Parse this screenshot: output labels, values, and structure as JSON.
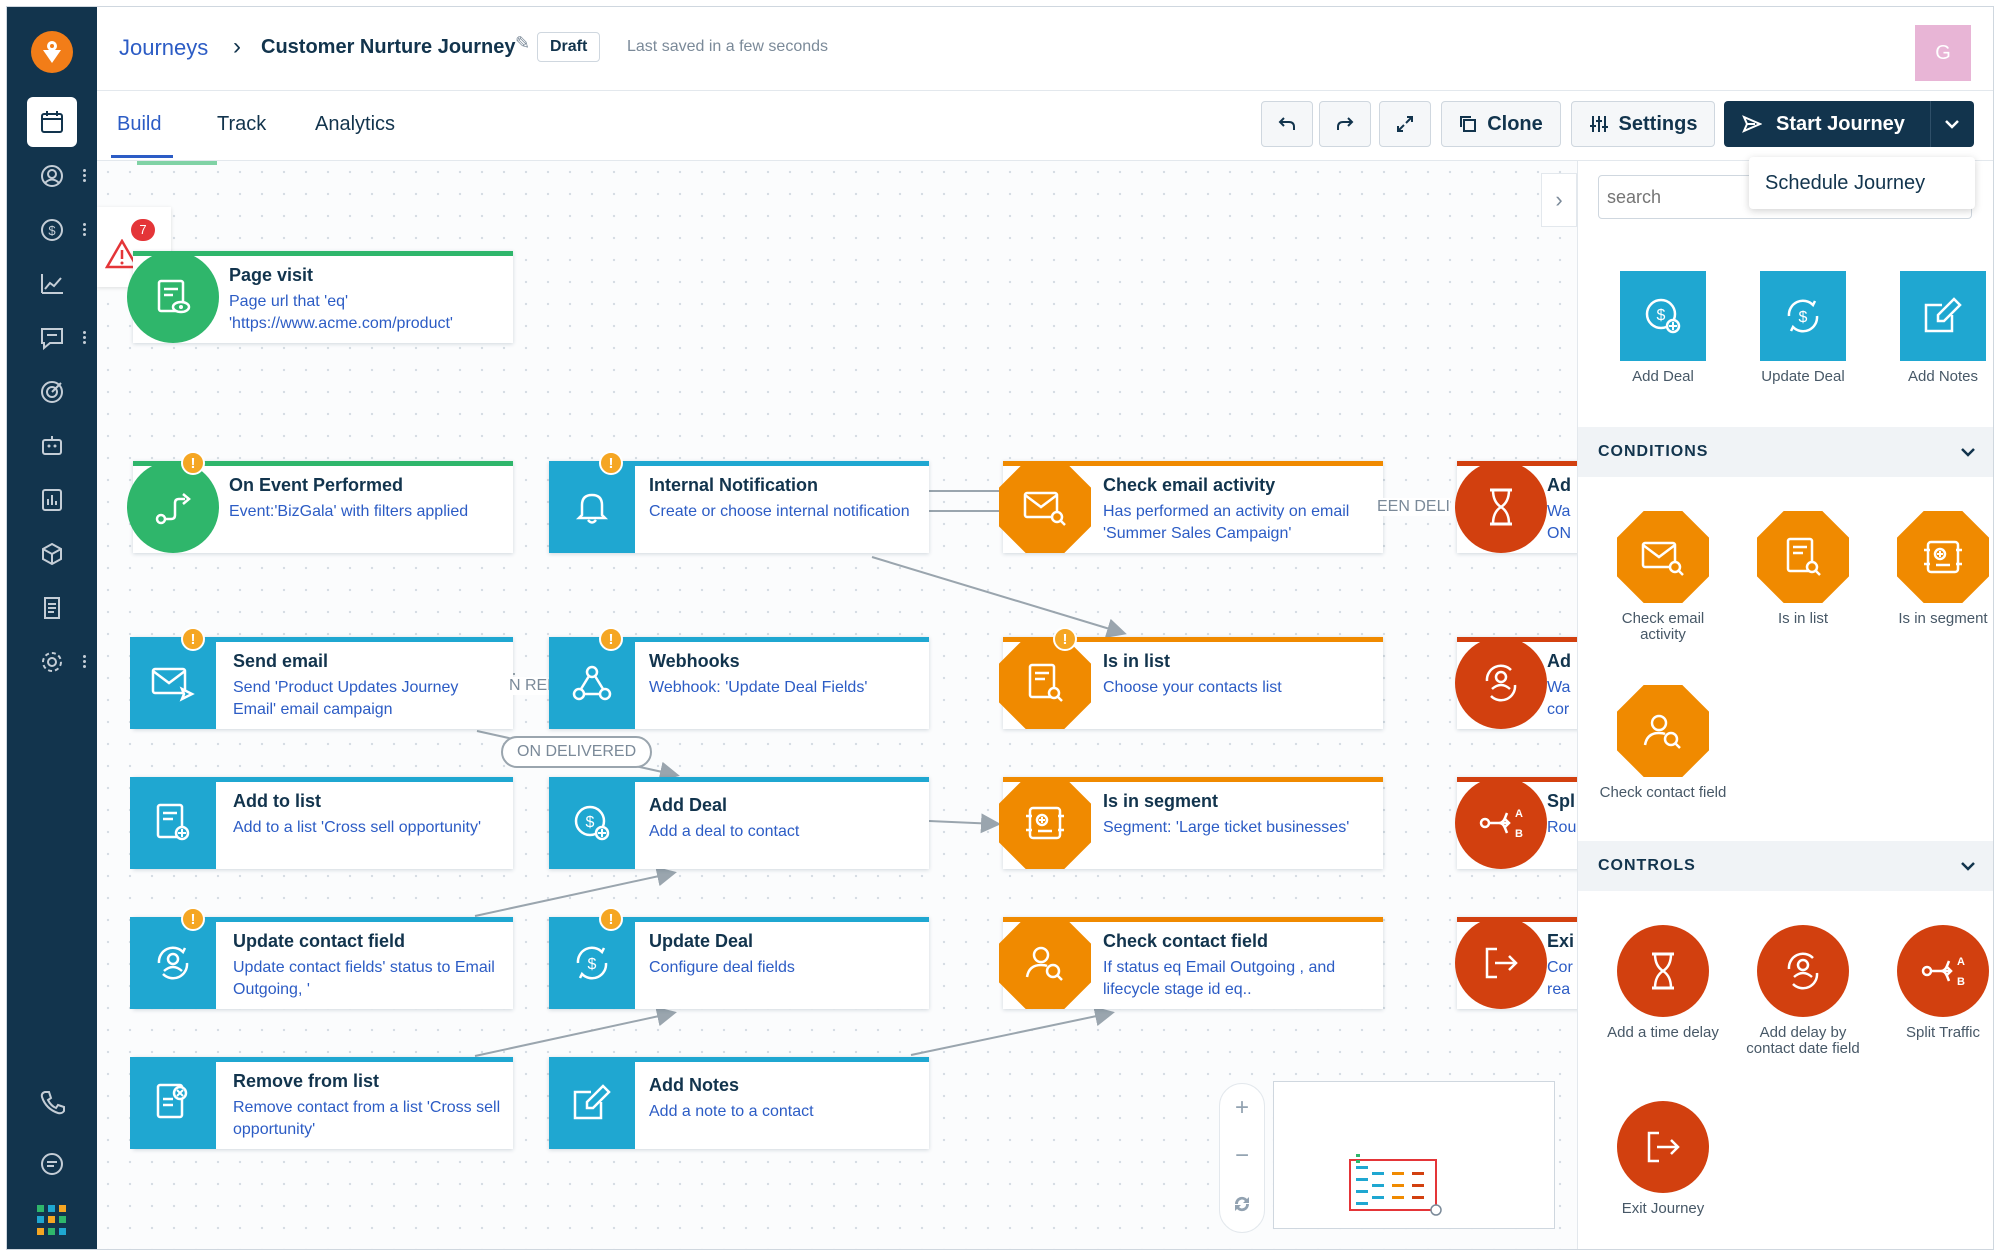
{
  "header": {
    "breadcrumb": "Journeys",
    "title": "Customer Nurture Journey",
    "status_badge": "Draft",
    "saved_text": "Last saved in a few seconds",
    "avatar_initial": "G"
  },
  "tabs": [
    "Build",
    "Track",
    "Analytics"
  ],
  "toolbar": {
    "clone_label": "Clone",
    "settings_label": "Settings",
    "start_label": "Start Journey",
    "schedule_label": "Schedule Journey"
  },
  "alerts": {
    "count": "7"
  },
  "nodes": [
    {
      "title": "Page visit",
      "sub": "Page url that 'eq' 'https://www.acme.com/product'"
    },
    {
      "title": "On Event Performed",
      "sub": "Event:'BizGala' with filters applied"
    },
    {
      "title": "Internal Notification",
      "sub": "Create or choose internal notification"
    },
    {
      "title": "Check email activity",
      "sub": "Has performed an activity on email 'Summer Sales Campaign'"
    },
    {
      "title": "Send email",
      "sub": "Send 'Product Updates Journey Email' email campaign"
    },
    {
      "title": "Webhooks",
      "sub": "Webhook: 'Update Deal Fields'"
    },
    {
      "title": "Is in list",
      "sub": "Choose your contacts list"
    },
    {
      "title": "Add to list",
      "sub": "Add to a list 'Cross sell opportunity'"
    },
    {
      "title": "Add Deal",
      "sub": "Add a deal to contact"
    },
    {
      "title": "Is in segment",
      "sub": "Segment: 'Large ticket businesses'"
    },
    {
      "title": "Update contact field",
      "sub": "Update contact fields' status to Email Outgoing, '"
    },
    {
      "title": "Update Deal",
      "sub": "Configure deal fields"
    },
    {
      "title": "Check contact field",
      "sub": "If status eq Email Outgoing , and lifecycle stage id eq.."
    },
    {
      "title": "Remove from list",
      "sub": "Remove contact from a list 'Cross sell opportunity'"
    },
    {
      "title": "Add Notes",
      "sub": "Add a note to a contact"
    }
  ],
  "partial_nodes": [
    {
      "title": "Ad",
      "sub": "Wa ON"
    },
    {
      "title": "Ad",
      "sub": "Wa cor"
    },
    {
      "title": "Spl",
      "sub": "Rou"
    },
    {
      "title": "Exi",
      "sub": "Cor rea"
    }
  ],
  "edge_labels": {
    "on_delivered": "ON DELIVERED",
    "on_rep": "N REP",
    "between": "EEN DELI"
  },
  "panel": {
    "search_placeholder": "search",
    "actions": [
      "Add Deal",
      "Update Deal",
      "Add Notes"
    ],
    "conditions_header": "CONDITIONS",
    "conditions": [
      "Check email activity",
      "Is in list",
      "Is in segment",
      "Check contact field"
    ],
    "controls_header": "CONTROLS",
    "controls": [
      "Add a time delay",
      "Add delay by contact date field",
      "Split Traffic",
      "Exit Journey"
    ]
  },
  "zoom": {
    "plus": "+",
    "minus": "−"
  },
  "colors": {
    "nav_bg": "#12344d",
    "trigger_green": "#2fb66b",
    "action_blue": "#1fa7d1",
    "condition_orange": "#f08a00",
    "control_red": "#d2400f",
    "primary_button": "#12344d",
    "link_blue": "#2c5cc5"
  }
}
